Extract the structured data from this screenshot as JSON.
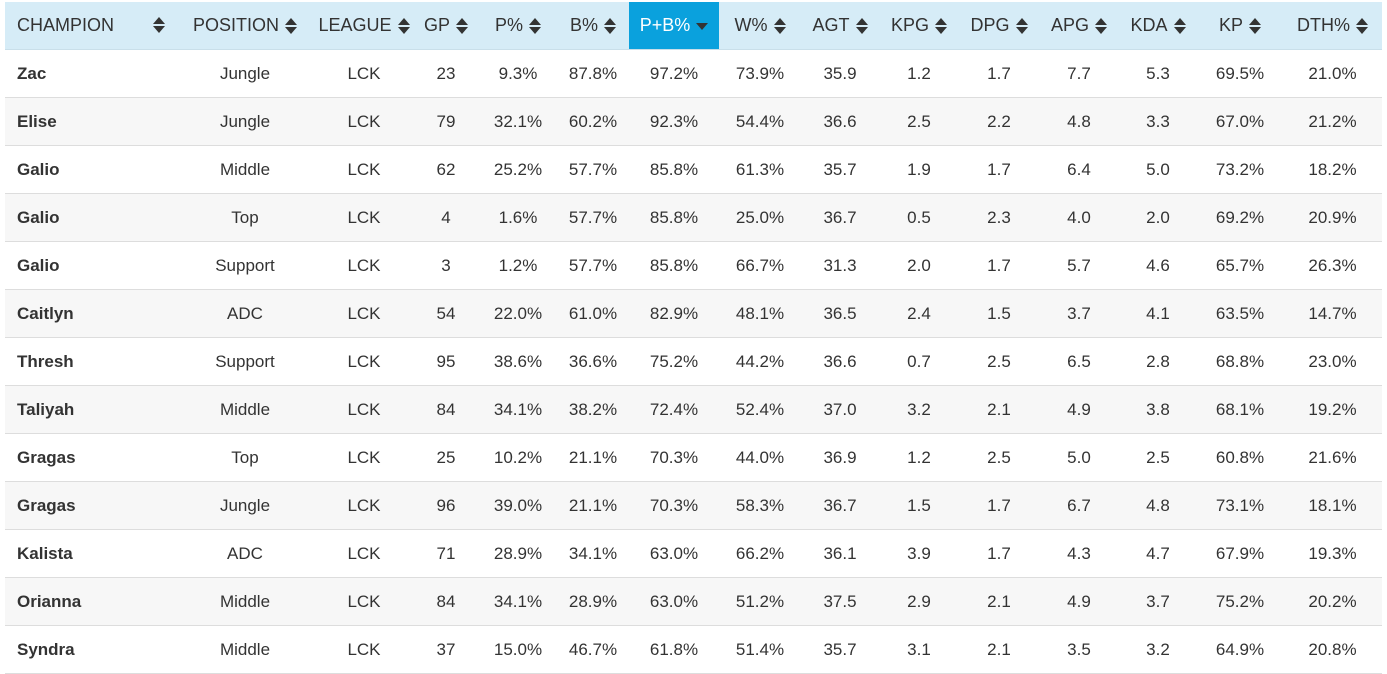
{
  "table": {
    "sorted_column": "P+B%",
    "sort_direction": "descending",
    "columns": [
      "CHAMPION",
      "POSITION",
      "LEAGUE",
      "GP",
      "P%",
      "B%",
      "P+B%",
      "W%",
      "AGT",
      "KPG",
      "DPG",
      "APG",
      "KDA",
      "KP",
      "DTH%"
    ],
    "rows": [
      [
        "Zac",
        "Jungle",
        "LCK",
        "23",
        "9.3%",
        "87.8%",
        "97.2%",
        "73.9%",
        "35.9",
        "1.2",
        "1.7",
        "7.7",
        "5.3",
        "69.5%",
        "21.0%"
      ],
      [
        "Elise",
        "Jungle",
        "LCK",
        "79",
        "32.1%",
        "60.2%",
        "92.3%",
        "54.4%",
        "36.6",
        "2.5",
        "2.2",
        "4.8",
        "3.3",
        "67.0%",
        "21.2%"
      ],
      [
        "Galio",
        "Middle",
        "LCK",
        "62",
        "25.2%",
        "57.7%",
        "85.8%",
        "61.3%",
        "35.7",
        "1.9",
        "1.7",
        "6.4",
        "5.0",
        "73.2%",
        "18.2%"
      ],
      [
        "Galio",
        "Top",
        "LCK",
        "4",
        "1.6%",
        "57.7%",
        "85.8%",
        "25.0%",
        "36.7",
        "0.5",
        "2.3",
        "4.0",
        "2.0",
        "69.2%",
        "20.9%"
      ],
      [
        "Galio",
        "Support",
        "LCK",
        "3",
        "1.2%",
        "57.7%",
        "85.8%",
        "66.7%",
        "31.3",
        "2.0",
        "1.7",
        "5.7",
        "4.6",
        "65.7%",
        "26.3%"
      ],
      [
        "Caitlyn",
        "ADC",
        "LCK",
        "54",
        "22.0%",
        "61.0%",
        "82.9%",
        "48.1%",
        "36.5",
        "2.4",
        "1.5",
        "3.7",
        "4.1",
        "63.5%",
        "14.7%"
      ],
      [
        "Thresh",
        "Support",
        "LCK",
        "95",
        "38.6%",
        "36.6%",
        "75.2%",
        "44.2%",
        "36.6",
        "0.7",
        "2.5",
        "6.5",
        "2.8",
        "68.8%",
        "23.0%"
      ],
      [
        "Taliyah",
        "Middle",
        "LCK",
        "84",
        "34.1%",
        "38.2%",
        "72.4%",
        "52.4%",
        "37.0",
        "3.2",
        "2.1",
        "4.9",
        "3.8",
        "68.1%",
        "19.2%"
      ],
      [
        "Gragas",
        "Top",
        "LCK",
        "25",
        "10.2%",
        "21.1%",
        "70.3%",
        "44.0%",
        "36.9",
        "1.2",
        "2.5",
        "5.0",
        "2.5",
        "60.8%",
        "21.6%"
      ],
      [
        "Gragas",
        "Jungle",
        "LCK",
        "96",
        "39.0%",
        "21.1%",
        "70.3%",
        "58.3%",
        "36.7",
        "1.5",
        "1.7",
        "6.7",
        "4.8",
        "73.1%",
        "18.1%"
      ],
      [
        "Kalista",
        "ADC",
        "LCK",
        "71",
        "28.9%",
        "34.1%",
        "63.0%",
        "66.2%",
        "36.1",
        "3.9",
        "1.7",
        "4.3",
        "4.7",
        "67.9%",
        "19.3%"
      ],
      [
        "Orianna",
        "Middle",
        "LCK",
        "84",
        "34.1%",
        "28.9%",
        "63.0%",
        "51.2%",
        "37.5",
        "2.9",
        "2.1",
        "4.9",
        "3.7",
        "75.2%",
        "20.2%"
      ],
      [
        "Syndra",
        "Middle",
        "LCK",
        "37",
        "15.0%",
        "46.7%",
        "61.8%",
        "51.4%",
        "35.7",
        "3.1",
        "2.1",
        "3.5",
        "3.2",
        "64.9%",
        "20.8%"
      ]
    ]
  },
  "colors": {
    "header_bg": "#d6ecf7",
    "active_header_bg": "#0aa1dd",
    "text": "#333333",
    "row_stripe": "#f7f7f7"
  }
}
